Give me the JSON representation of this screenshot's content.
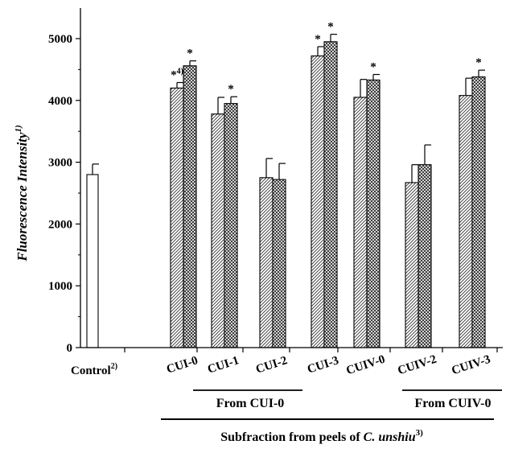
{
  "chart_data": {
    "type": "bar",
    "ylabel": "Fluorescence Intensity",
    "ylabel_sup": "1)",
    "xlabel": "Subfraction from peels of ",
    "xlabel_italic": "C. unshiu",
    "xlabel_sup": "3)",
    "ylim": [
      0,
      5500
    ],
    "yticks": [
      0,
      1000,
      2000,
      3000,
      4000,
      5000
    ],
    "grid": false,
    "control": {
      "label": "Control",
      "label_sup": "2)",
      "value": 2800,
      "error": 170
    },
    "categories": [
      "CUI-0",
      "CUI-1",
      "CUI-2",
      "CUI-3",
      "CUIV-0",
      "CUIV-2",
      "CUIV-3"
    ],
    "series": [
      {
        "pattern": "hatched",
        "values": [
          4200,
          3780,
          2750,
          4720,
          4050,
          2670,
          4080
        ],
        "errors": [
          90,
          270,
          310,
          150,
          290,
          290,
          280
        ],
        "significance": [
          "*4)",
          "",
          "",
          "*",
          "",
          "",
          ""
        ]
      },
      {
        "pattern": "crosshatched",
        "values": [
          4560,
          3950,
          2720,
          4950,
          4330,
          2960,
          4380
        ],
        "errors": [
          80,
          110,
          260,
          120,
          90,
          320,
          110
        ],
        "significance": [
          "*",
          "*",
          "",
          "*",
          "*",
          "",
          "*"
        ]
      }
    ],
    "groups": [
      {
        "label": "From CUI-0",
        "from": 1,
        "to": 3
      },
      {
        "label": "From CUIV-0",
        "from": 5,
        "to": 6
      }
    ]
  }
}
